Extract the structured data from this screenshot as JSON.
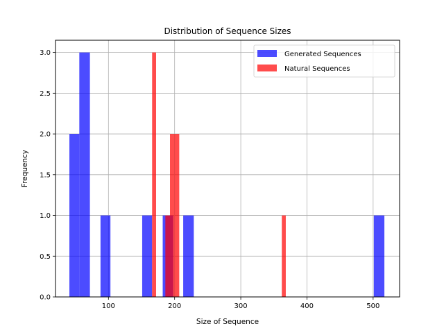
{
  "chart_data": {
    "type": "histogram",
    "title": "Distribution of Sequence Sizes",
    "xlabel": "Size of Sequence",
    "ylabel": "Frequency",
    "xlim": [
      20,
      540
    ],
    "ylim": [
      0,
      3.15
    ],
    "xticks": [
      100,
      200,
      300,
      400,
      500
    ],
    "yticks": [
      0.0,
      0.5,
      1.0,
      1.5,
      2.0,
      2.5,
      3.0
    ],
    "grid": true,
    "legend_position": "top-right",
    "series": [
      {
        "name": "Generated Sequences",
        "color": "#0000ff",
        "opacity": 0.7,
        "bins": [
          {
            "x0": 41,
            "x1": 56,
            "count": 2
          },
          {
            "x0": 56,
            "x1": 72,
            "count": 3
          },
          {
            "x0": 88,
            "x1": 103,
            "count": 1
          },
          {
            "x0": 151,
            "x1": 166,
            "count": 1
          },
          {
            "x0": 182,
            "x1": 198,
            "count": 1
          },
          {
            "x0": 213,
            "x1": 229,
            "count": 1
          },
          {
            "x0": 501,
            "x1": 517,
            "count": 1
          }
        ]
      },
      {
        "name": "Natural Sequences",
        "color": "#ff0000",
        "opacity": 0.7,
        "bins": [
          {
            "x0": 166,
            "x1": 172,
            "count": 3
          },
          {
            "x0": 186,
            "x1": 193,
            "count": 1
          },
          {
            "x0": 193,
            "x1": 200,
            "count": 2
          },
          {
            "x0": 200,
            "x1": 207,
            "count": 2
          },
          {
            "x0": 362,
            "x1": 368,
            "count": 1
          }
        ]
      }
    ]
  }
}
